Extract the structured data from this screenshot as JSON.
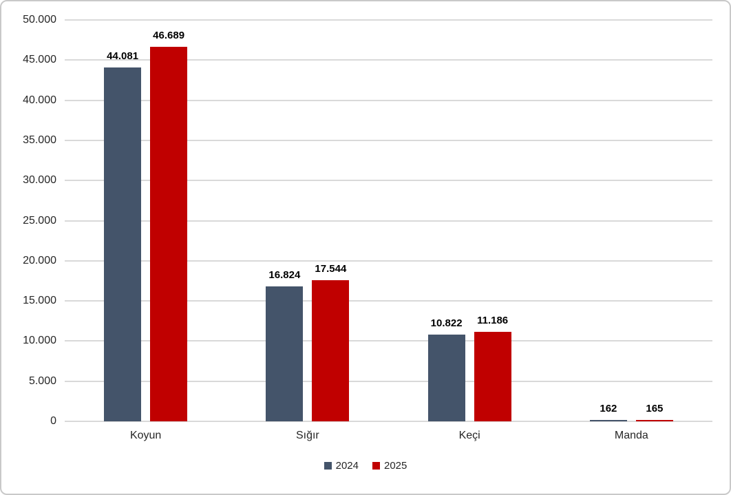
{
  "chart_data": {
    "type": "bar",
    "title": "",
    "xlabel": "",
    "ylabel": "",
    "categories": [
      "Koyun",
      "Sığır",
      "Keçi",
      "Manda"
    ],
    "series": [
      {
        "name": "2024",
        "color": "#44546A",
        "values": [
          44081,
          16824,
          10822,
          162
        ],
        "labels": [
          "44.081",
          "16.824",
          "10.822",
          "162"
        ]
      },
      {
        "name": "2025",
        "color": "#C00000",
        "values": [
          46689,
          17544,
          11186,
          165
        ],
        "labels": [
          "46.689",
          "17.544",
          "11.186",
          "165"
        ]
      }
    ],
    "ylim": [
      0,
      50000
    ],
    "ytick_step": 5000,
    "yticks": [
      {
        "value": 0,
        "label": "0"
      },
      {
        "value": 5000,
        "label": "5.000"
      },
      {
        "value": 10000,
        "label": "10.000"
      },
      {
        "value": 15000,
        "label": "15.000"
      },
      {
        "value": 20000,
        "label": "20.000"
      },
      {
        "value": 25000,
        "label": "25.000"
      },
      {
        "value": 30000,
        "label": "30.000"
      },
      {
        "value": 35000,
        "label": "35.000"
      },
      {
        "value": 40000,
        "label": "40.000"
      },
      {
        "value": 45000,
        "label": "45.000"
      },
      {
        "value": 50000,
        "label": "50.000"
      }
    ],
    "grid": true,
    "legend_position": "bottom",
    "colors": {
      "gridline": "#D9D9D9",
      "axis_text": "#262626",
      "data_label": "#000000",
      "frame_border": "#C9C9C9",
      "background": "#FFFFFF"
    }
  }
}
